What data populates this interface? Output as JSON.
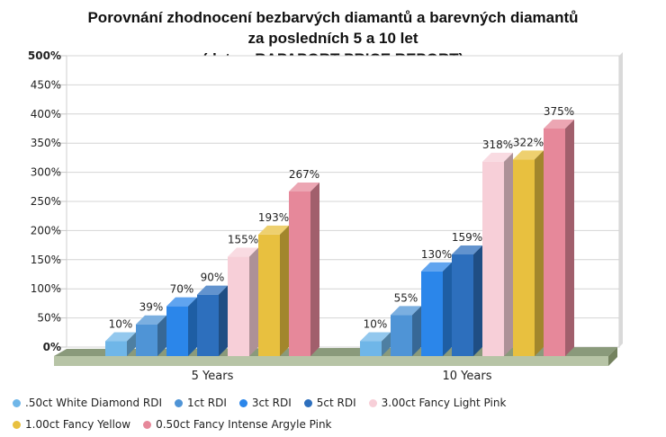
{
  "chart_data": {
    "type": "bar",
    "title_lines": [
      "Porovnání zhodnocení bezbarvých diamantů a barevných diamantů",
      "za posledních 5 a 10 let",
      "(data z RAPAPORT PRICE REPORT)"
    ],
    "categories": [
      "5 Years",
      "10 Years"
    ],
    "yticks": [
      "0%",
      "50%",
      "100%",
      "150%",
      "200%",
      "250%",
      "300%",
      "350%",
      "400%",
      "450%",
      "500%"
    ],
    "ylim": [
      0,
      500
    ],
    "grid": true,
    "legend_position": "bottom",
    "series": [
      {
        "name": ".50ct White Diamond RDI",
        "color": "#6fb6e8",
        "values": [
          10,
          10
        ],
        "labels": [
          "10%",
          "10%"
        ]
      },
      {
        "name": "1ct RDI",
        "color": "#4f94d6",
        "values": [
          39,
          55
        ],
        "labels": [
          "39%",
          "55%"
        ]
      },
      {
        "name": "3ct RDI",
        "color": "#2b86ea",
        "values": [
          70,
          130
        ],
        "labels": [
          "70%",
          "130%"
        ]
      },
      {
        "name": "5ct RDI",
        "color": "#2d6fbd",
        "values": [
          90,
          159
        ],
        "labels": [
          "90%",
          "159%"
        ]
      },
      {
        "name": "3.00ct Fancy Light Pink",
        "color": "#f7cfd8",
        "values": [
          155,
          318
        ],
        "labels": [
          "155%",
          "318%"
        ]
      },
      {
        "name": "1.00ct Fancy Yellow",
        "color": "#e8c03f",
        "values": [
          193,
          322
        ],
        "labels": [
          "193%",
          "322%"
        ]
      },
      {
        "name": "0.50ct Fancy Intense Argyle Pink",
        "color": "#e6889a",
        "values": [
          267,
          375
        ],
        "labels": [
          "267%",
          "375%"
        ]
      }
    ]
  }
}
